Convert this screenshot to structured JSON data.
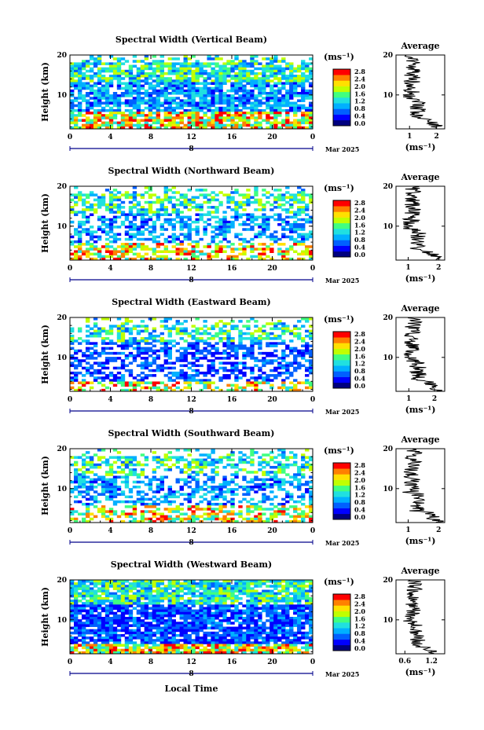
{
  "panels": [
    {
      "title": "Spectral Width (Vertical Beam)",
      "avg_title": "Average",
      "avg_xticks": [
        "1",
        "2"
      ],
      "avg_xrange": [
        0.5,
        2.3
      ],
      "avg_seed": 11
    },
    {
      "title": "Spectral Width (Northward Beam)",
      "avg_title": "Average",
      "avg_xticks": [
        "1",
        "2"
      ],
      "avg_xrange": [
        0.6,
        2.2
      ],
      "avg_seed": 23
    },
    {
      "title": "Spectral Width (Eastward Beam)",
      "avg_title": "Average",
      "avg_xticks": [
        "1",
        "2"
      ],
      "avg_xrange": [
        0.5,
        2.4
      ],
      "avg_seed": 37
    },
    {
      "title": "Spectral Width (Southward Beam)",
      "avg_title": "Average",
      "avg_xticks": [
        "1",
        "2"
      ],
      "avg_xrange": [
        0.6,
        2.2
      ],
      "avg_seed": 41
    },
    {
      "title": "Spectral Width (Westward Beam)",
      "avg_title": "Average",
      "avg_xticks": [
        "0.6",
        "1.2"
      ],
      "avg_xrange": [
        0.4,
        1.5
      ],
      "avg_seed": 53
    }
  ],
  "common": {
    "ylabel": "Height (km)",
    "yticks": [
      "10",
      "20"
    ],
    "xticks": [
      "0",
      "4",
      "8",
      "12",
      "16",
      "20",
      "0"
    ],
    "date_day": "8",
    "date_label": "Mar 2025",
    "xlabel": "Local Time",
    "cb_unit": "(ms⁻¹)",
    "avg_xlabel": "(ms⁻¹)",
    "avg_yticks": [
      "10",
      "20"
    ],
    "cb_ticks": [
      "2.8",
      "2.4",
      "2.0",
      "1.6",
      "1.2",
      "0.8",
      "0.4",
      "0.0"
    ]
  },
  "colors": {
    "scale": [
      "#00007f",
      "#0000ff",
      "#0060ff",
      "#00b0ff",
      "#20e0e0",
      "#40ff80",
      "#c0ff00",
      "#ffe000",
      "#ff8000",
      "#ff0000"
    ]
  },
  "chart_data": {
    "type": "heatmap",
    "x_range_hours": [
      0,
      24
    ],
    "y_range_km": [
      1.5,
      20
    ],
    "value_range_ms": [
      0.0,
      2.8
    ],
    "colorbar": "jet",
    "note_values": "Time-height cross sections of spectral width for five beams on 8 Mar 2025; height-averaged profiles at right."
  }
}
